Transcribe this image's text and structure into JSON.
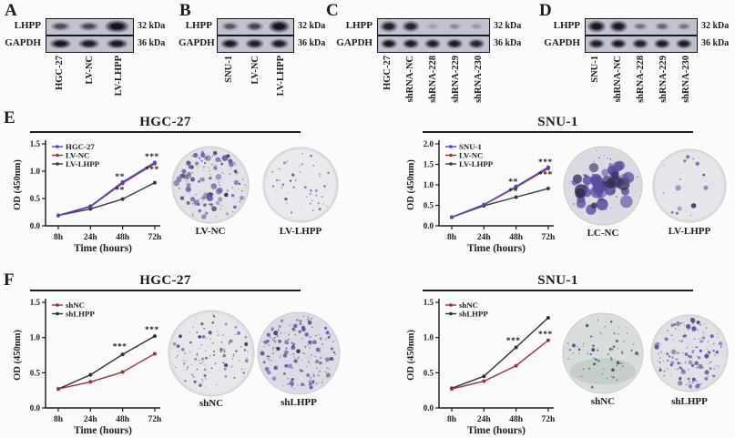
{
  "blot_panels": [
    {
      "label": "A",
      "lanes": [
        "HGC-27",
        "LV-NC",
        "LV-LHPP"
      ],
      "rows": [
        {
          "protein": "LHPP",
          "kda": "32 kDa",
          "bands": [
            0.5,
            0.52,
            1.0
          ]
        },
        {
          "protein": "GAPDH",
          "kda": "36 kDa",
          "bands": [
            0.95,
            0.85,
            0.92
          ]
        }
      ]
    },
    {
      "label": "B",
      "lanes": [
        "SNU-1",
        "LV-NC",
        "LV-LHPP"
      ],
      "rows": [
        {
          "protein": "LHPP",
          "kda": "32 kDa",
          "bands": [
            0.45,
            0.55,
            1.0
          ]
        },
        {
          "protein": "GAPDH",
          "kda": "36 kDa",
          "bands": [
            0.92,
            0.85,
            0.9
          ]
        }
      ]
    },
    {
      "label": "C",
      "lanes": [
        "HGC-27",
        "shRNA-NC",
        "shRNA-228",
        "shRNA-229",
        "shRNA-230"
      ],
      "rows": [
        {
          "protein": "LHPP",
          "kda": "32 kDa",
          "bands": [
            0.85,
            0.8,
            0.12,
            0.2,
            0.15
          ]
        },
        {
          "protein": "GAPDH",
          "kda": "36 kDa",
          "bands": [
            0.95,
            0.9,
            0.85,
            0.9,
            0.8
          ]
        }
      ]
    },
    {
      "label": "D",
      "lanes": [
        "SNU-1",
        "shRNA-NC",
        "shRNA-228",
        "shRNA-229",
        "shRNA-230"
      ],
      "rows": [
        {
          "protein": "LHPP",
          "kda": "32 kDa",
          "bands": [
            0.95,
            0.92,
            0.3,
            0.35,
            0.28
          ]
        },
        {
          "protein": "GAPDH",
          "kda": "36 kDa",
          "bands": [
            0.88,
            0.92,
            0.85,
            0.9,
            0.9
          ]
        }
      ]
    }
  ],
  "assay_sections": [
    {
      "panel_label": "E",
      "title": "HGC-27",
      "dishes": [
        {
          "label": "LV-NC",
          "bg": "#e3e2e8",
          "dot_color": "#68589f",
          "dots": 88,
          "dot_min": 0.7,
          "dot_max": 3.4,
          "seed": 7,
          "cluster": false,
          "shade_band": false
        },
        {
          "label": "LV-LHPP",
          "bg": "#eae9ed",
          "dot_color": "#5d538f",
          "dots": 28,
          "dot_min": 0.5,
          "dot_max": 1.7,
          "seed": 11,
          "cluster": false,
          "shade_band": false
        }
      ]
    },
    {
      "panel_label": "",
      "title": "SNU-1",
      "dishes": [
        {
          "label": "LC-NC",
          "bg": "#dcdbe3",
          "dot_color": "#584ea0",
          "dots": 46,
          "dot_min": 1.2,
          "dot_max": 7.0,
          "seed": 3,
          "cluster": true,
          "shade_band": false
        },
        {
          "label": "LV-LHPP",
          "bg": "#e6e5ea",
          "dot_color": "#5a50a0",
          "dots": 11,
          "dot_min": 1.0,
          "dot_max": 3.2,
          "seed": 5,
          "cluster": false,
          "shade_band": false
        }
      ]
    },
    {
      "panel_label": "F",
      "title": "HGC-27",
      "dishes": [
        {
          "label": "shNC",
          "bg": "#e7e6ea",
          "dot_color": "#4a4376",
          "dots": 68,
          "dot_min": 0.6,
          "dot_max": 2.2,
          "seed": 13,
          "cluster": false,
          "shade_band": false
        },
        {
          "label": "shLHPP",
          "bg": "#dbdce6",
          "dot_color": "#5a52a0",
          "dots": 118,
          "dot_min": 0.6,
          "dot_max": 2.6,
          "seed": 17,
          "cluster": false,
          "shade_band": false
        }
      ]
    },
    {
      "panel_label": "",
      "title": "SNU-1",
      "dishes": [
        {
          "label": "shNC",
          "bg": "#d9dedb",
          "dot_color": "#45406e",
          "dots": 44,
          "dot_min": 0.6,
          "dot_max": 2.0,
          "seed": 19,
          "cluster": false,
          "shade_band": true
        },
        {
          "label": "shLHPP",
          "bg": "#e1e1e7",
          "dot_color": "#5750a0",
          "dots": 96,
          "dot_min": 0.6,
          "dot_max": 2.8,
          "seed": 23,
          "cluster": false,
          "shade_band": false
        }
      ]
    }
  ],
  "chart_data": [
    {
      "type": "line",
      "panel": "E",
      "title": "HGC-27",
      "x_categories": [
        "8h",
        "24h",
        "48h",
        "72h"
      ],
      "xlabel": "Time (hours)",
      "ylabel": "OD (450nm)",
      "ylim": [
        0,
        1.5
      ],
      "yticks": [
        0.0,
        0.5,
        1.0,
        1.5
      ],
      "legend_position": "top-left",
      "grid": false,
      "series": [
        {
          "name": "HGC-27",
          "color": "#4747c4",
          "values": [
            0.19,
            0.36,
            0.8,
            1.16
          ]
        },
        {
          "name": "LV-NC",
          "color": "#a83232",
          "values": [
            0.19,
            0.35,
            0.78,
            1.14
          ]
        },
        {
          "name": "LV-LHPP",
          "color": "#38383f",
          "values": [
            0.19,
            0.31,
            0.49,
            0.79
          ]
        }
      ],
      "annotations": [
        {
          "text": "**",
          "xi": 2,
          "y": 0.9
        },
        {
          "text": "**",
          "xi": 2,
          "y": 0.66
        },
        {
          "text": "***",
          "xi": 3,
          "y": 1.27
        },
        {
          "text": "***",
          "xi": 3,
          "y": 1.03
        }
      ]
    },
    {
      "type": "line",
      "panel": "E",
      "title": "SNU-1",
      "x_categories": [
        "8h",
        "24h",
        "48h",
        "72h"
      ],
      "xlabel": "Time (hours)",
      "ylabel": "OD (450nm)",
      "ylim": [
        0,
        2.0
      ],
      "yticks": [
        0.0,
        0.5,
        1.0,
        1.5,
        2.0
      ],
      "legend_position": "top-left",
      "grid": false,
      "series": [
        {
          "name": "SNU-1",
          "color": "#4747c4",
          "values": [
            0.21,
            0.52,
            0.96,
            1.43
          ]
        },
        {
          "name": "LV-NC",
          "color": "#a83232",
          "values": [
            0.21,
            0.51,
            0.94,
            1.4
          ]
        },
        {
          "name": "LV-LHPP",
          "color": "#38383f",
          "values": [
            0.21,
            0.49,
            0.7,
            0.91
          ]
        }
      ],
      "annotations": [
        {
          "text": "**",
          "xi": 2,
          "y": 1.08
        },
        {
          "text": "**",
          "xi": 2,
          "y": 0.84
        },
        {
          "text": "***",
          "xi": 3,
          "y": 1.56
        },
        {
          "text": "***",
          "xi": 3,
          "y": 1.26
        }
      ]
    },
    {
      "type": "line",
      "panel": "F",
      "title": "HGC-27",
      "x_categories": [
        "8h",
        "24h",
        "48h",
        "72h"
      ],
      "xlabel": "Time (hours)",
      "ylabel": "OD (450nm)",
      "ylim": [
        0,
        1.5
      ],
      "yticks": [
        0.0,
        0.5,
        1.0,
        1.5
      ],
      "legend_position": "top-left",
      "grid": false,
      "series": [
        {
          "name": "shNC",
          "color": "#9e2f3a",
          "values": [
            0.27,
            0.37,
            0.51,
            0.77
          ]
        },
        {
          "name": "shLHPP",
          "color": "#2d2d33",
          "values": [
            0.27,
            0.47,
            0.76,
            1.02
          ]
        }
      ],
      "annotations": [
        {
          "text": "***",
          "xi": 2,
          "y": 0.87
        },
        {
          "text": "***",
          "xi": 3,
          "y": 1.11
        }
      ]
    },
    {
      "type": "line",
      "panel": "F",
      "title": "SNU-1",
      "x_categories": [
        "8h",
        "24h",
        "48h",
        "72h"
      ],
      "xlabel": "Time (hours)",
      "ylabel": "OD (450nm)",
      "ylim": [
        0,
        1.5
      ],
      "yticks": [
        0.0,
        0.5,
        1.0,
        1.5
      ],
      "legend_position": "top-left",
      "grid": false,
      "series": [
        {
          "name": "shNC",
          "color": "#9e2f3a",
          "values": [
            0.27,
            0.38,
            0.6,
            0.96
          ]
        },
        {
          "name": "shLHPP",
          "color": "#2d2d33",
          "values": [
            0.28,
            0.45,
            0.86,
            1.28
          ]
        }
      ],
      "annotations": [
        {
          "text": "***",
          "xi": 2,
          "y": 0.96
        },
        {
          "text": "***",
          "xi": 3,
          "y": 1.05
        }
      ]
    }
  ],
  "colors": {
    "band": "#0d0d16",
    "axis": "#1a1a1a",
    "blot_bg": "#c0c2cf",
    "annotation": "#1c1c1c"
  }
}
